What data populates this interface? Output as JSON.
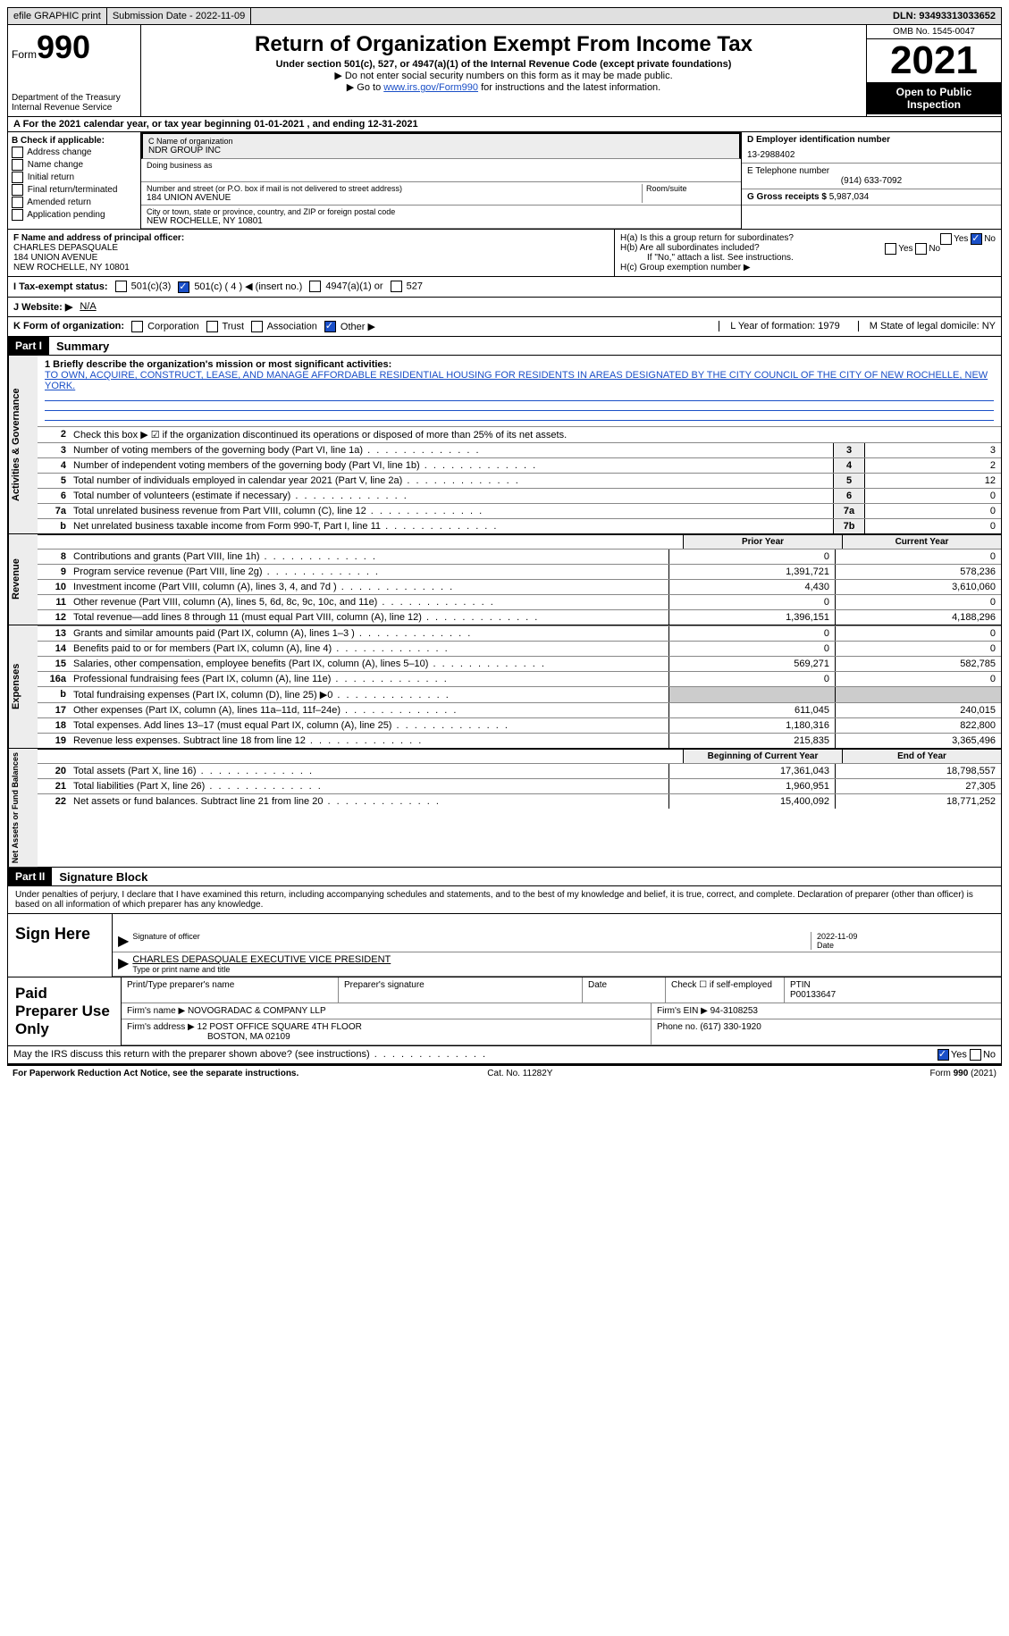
{
  "topbar": {
    "efile": "efile GRAPHIC print",
    "submission": "Submission Date - 2022-11-09",
    "dln": "DLN: 93493313033652"
  },
  "header": {
    "form_label": "Form",
    "form_num": "990",
    "dept": "Department of the Treasury\nInternal Revenue Service",
    "title": "Return of Organization Exempt From Income Tax",
    "subtitle": "Under section 501(c), 527, or 4947(a)(1) of the Internal Revenue Code (except private foundations)",
    "note1": "▶ Do not enter social security numbers on this form as it may be made public.",
    "note2_pre": "▶ Go to ",
    "note2_link": "www.irs.gov/Form990",
    "note2_post": " for instructions and the latest information.",
    "omb": "OMB No. 1545-0047",
    "year": "2021",
    "inspection": "Open to Public Inspection"
  },
  "row_a": "A For the 2021 calendar year, or tax year beginning 01-01-2021   , and ending 12-31-2021",
  "box_b": {
    "title": "B Check if applicable:",
    "items": [
      "Address change",
      "Name change",
      "Initial return",
      "Final return/terminated",
      "Amended return",
      "Application pending"
    ]
  },
  "box_c": {
    "name_label": "C Name of organization",
    "name": "NDR GROUP INC",
    "dba_label": "Doing business as",
    "addr_label": "Number and street (or P.O. box if mail is not delivered to street address)",
    "room_label": "Room/suite",
    "addr": "184 UNION AVENUE",
    "city_label": "City or town, state or province, country, and ZIP or foreign postal code",
    "city": "NEW ROCHELLE, NY  10801"
  },
  "box_d": {
    "ein_label": "D Employer identification number",
    "ein": "13-2988402",
    "phone_label": "E Telephone number",
    "phone": "(914) 633-7092",
    "gross_label": "G Gross receipts $",
    "gross": "5,987,034"
  },
  "box_f": {
    "label": "F Name and address of principal officer:",
    "name": "CHARLES DEPASQUALE",
    "addr": "184 UNION AVENUE",
    "city": "NEW ROCHELLE, NY  10801"
  },
  "box_h": {
    "ha": "H(a)  Is this a group return for subordinates?",
    "hb": "H(b)  Are all subordinates included?",
    "hb_note": "If \"No,\" attach a list. See instructions.",
    "hc": "H(c)  Group exemption number ▶"
  },
  "status": {
    "label": "I  Tax-exempt status:",
    "opts": [
      "501(c)(3)",
      "501(c) ( 4 ) ◀ (insert no.)",
      "4947(a)(1) or",
      "527"
    ]
  },
  "website": {
    "label": "J  Website: ▶",
    "value": "N/A"
  },
  "korg": {
    "label": "K Form of organization:",
    "opts": [
      "Corporation",
      "Trust",
      "Association",
      "Other ▶"
    ],
    "l": "L Year of formation: 1979",
    "m": "M State of legal domicile: NY"
  },
  "part1": {
    "header": "Part I",
    "title": "Summary",
    "side_activities": "Activities & Governance",
    "side_revenue": "Revenue",
    "side_expenses": "Expenses",
    "side_net": "Net Assets or Fund Balances",
    "mission_label": "1  Briefly describe the organization's mission or most significant activities:",
    "mission": "TO OWN, ACQUIRE, CONSTRUCT, LEASE, AND MANAGE AFFORDABLE RESIDENTIAL HOUSING FOR RESIDENTS IN AREAS DESIGNATED BY THE CITY COUNCIL OF THE CITY OF NEW ROCHELLE, NEW YORK.",
    "line2": "Check this box ▶ ☑ if the organization discontinued its operations or disposed of more than 25% of its net assets.",
    "lines_single": [
      {
        "n": "3",
        "t": "Number of voting members of the governing body (Part VI, line 1a)",
        "box": "3",
        "v": "3"
      },
      {
        "n": "4",
        "t": "Number of independent voting members of the governing body (Part VI, line 1b)",
        "box": "4",
        "v": "2"
      },
      {
        "n": "5",
        "t": "Total number of individuals employed in calendar year 2021 (Part V, line 2a)",
        "box": "5",
        "v": "12"
      },
      {
        "n": "6",
        "t": "Total number of volunteers (estimate if necessary)",
        "box": "6",
        "v": "0"
      },
      {
        "n": "7a",
        "t": "Total unrelated business revenue from Part VIII, column (C), line 12",
        "box": "7a",
        "v": "0"
      },
      {
        "n": "b",
        "t": "Net unrelated business taxable income from Form 990-T, Part I, line 11",
        "box": "7b",
        "v": "0"
      }
    ],
    "col_prior": "Prior Year",
    "col_current": "Current Year",
    "revenue_rows": [
      {
        "n": "8",
        "t": "Contributions and grants (Part VIII, line 1h)",
        "p": "0",
        "c": "0"
      },
      {
        "n": "9",
        "t": "Program service revenue (Part VIII, line 2g)",
        "p": "1,391,721",
        "c": "578,236"
      },
      {
        "n": "10",
        "t": "Investment income (Part VIII, column (A), lines 3, 4, and 7d )",
        "p": "4,430",
        "c": "3,610,060"
      },
      {
        "n": "11",
        "t": "Other revenue (Part VIII, column (A), lines 5, 6d, 8c, 9c, 10c, and 11e)",
        "p": "0",
        "c": "0"
      },
      {
        "n": "12",
        "t": "Total revenue—add lines 8 through 11 (must equal Part VIII, column (A), line 12)",
        "p": "1,396,151",
        "c": "4,188,296"
      }
    ],
    "expense_rows": [
      {
        "n": "13",
        "t": "Grants and similar amounts paid (Part IX, column (A), lines 1–3 )",
        "p": "0",
        "c": "0"
      },
      {
        "n": "14",
        "t": "Benefits paid to or for members (Part IX, column (A), line 4)",
        "p": "0",
        "c": "0"
      },
      {
        "n": "15",
        "t": "Salaries, other compensation, employee benefits (Part IX, column (A), lines 5–10)",
        "p": "569,271",
        "c": "582,785"
      },
      {
        "n": "16a",
        "t": "Professional fundraising fees (Part IX, column (A), line 11e)",
        "p": "0",
        "c": "0"
      },
      {
        "n": "b",
        "t": "Total fundraising expenses (Part IX, column (D), line 25) ▶0",
        "p": "",
        "c": "",
        "shaded": true
      },
      {
        "n": "17",
        "t": "Other expenses (Part IX, column (A), lines 11a–11d, 11f–24e)",
        "p": "611,045",
        "c": "240,015"
      },
      {
        "n": "18",
        "t": "Total expenses. Add lines 13–17 (must equal Part IX, column (A), line 25)",
        "p": "1,180,316",
        "c": "822,800"
      },
      {
        "n": "19",
        "t": "Revenue less expenses. Subtract line 18 from line 12",
        "p": "215,835",
        "c": "3,365,496"
      }
    ],
    "col_begin": "Beginning of Current Year",
    "col_end": "End of Year",
    "net_rows": [
      {
        "n": "20",
        "t": "Total assets (Part X, line 16)",
        "p": "17,361,043",
        "c": "18,798,557"
      },
      {
        "n": "21",
        "t": "Total liabilities (Part X, line 26)",
        "p": "1,960,951",
        "c": "27,305"
      },
      {
        "n": "22",
        "t": "Net assets or fund balances. Subtract line 21 from line 20",
        "p": "15,400,092",
        "c": "18,771,252"
      }
    ]
  },
  "part2": {
    "header": "Part II",
    "title": "Signature Block",
    "intro": "Under penalties of perjury, I declare that I have examined this return, including accompanying schedules and statements, and to the best of my knowledge and belief, it is true, correct, and complete. Declaration of preparer (other than officer) is based on all information of which preparer has any knowledge.",
    "sign_here": "Sign Here",
    "sig_officer": "Signature of officer",
    "sig_date": "2022-11-09",
    "date_label": "Date",
    "officer_name": "CHARLES DEPASQUALE  EXECUTIVE VICE PRESIDENT",
    "name_label": "Type or print name and title",
    "paid_label": "Paid Preparer Use Only",
    "prep_name_label": "Print/Type preparer's name",
    "prep_sig_label": "Preparer's signature",
    "prep_date_label": "Date",
    "self_emp": "Check ☐ if self-employed",
    "ptin_label": "PTIN",
    "ptin": "P00133647",
    "firm_name_label": "Firm's name    ▶",
    "firm_name": "NOVOGRADAC & COMPANY LLP",
    "firm_ein_label": "Firm's EIN ▶",
    "firm_ein": "94-3108253",
    "firm_addr_label": "Firm's address ▶",
    "firm_addr1": "12 POST OFFICE SQUARE 4TH FLOOR",
    "firm_addr2": "BOSTON, MA  02109",
    "firm_phone_label": "Phone no.",
    "firm_phone": "(617) 330-1920",
    "discuss": "May the IRS discuss this return with the preparer shown above? (see instructions)",
    "yes": "Yes",
    "no": "No"
  },
  "footer": {
    "left": "For Paperwork Reduction Act Notice, see the separate instructions.",
    "center": "Cat. No. 11282Y",
    "right": "Form 990 (2021)"
  }
}
